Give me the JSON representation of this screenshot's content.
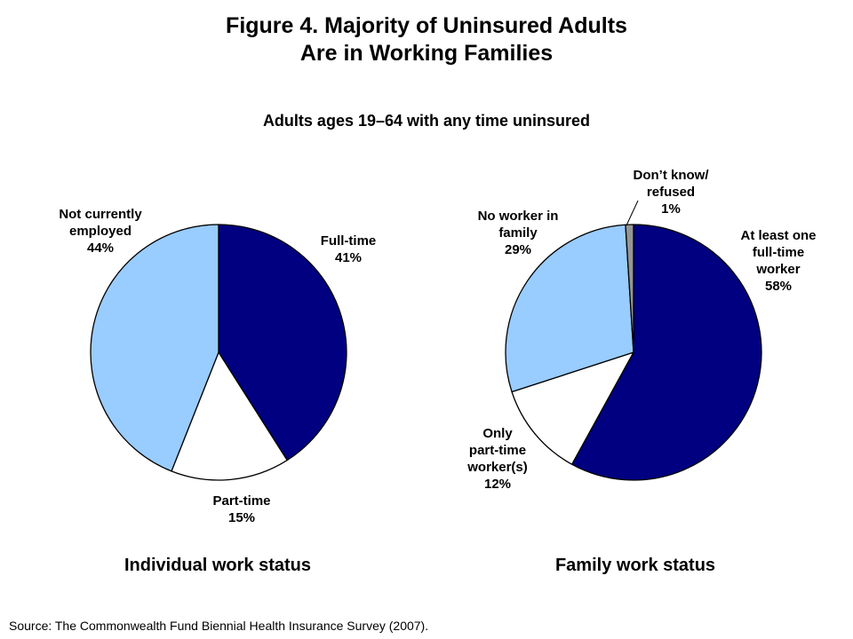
{
  "title_line1": "Figure 4. Majority of Uninsured Adults",
  "title_line2": "Are in Working Families",
  "subtitle": "Adults ages 19–64 with any time uninsured",
  "source": "Source: The Commonwealth Fund Biennial Health Insurance Survey (2007).",
  "chart_data": [
    {
      "type": "pie",
      "title": "Individual work status",
      "start": "12 o'clock, clockwise",
      "slices": [
        {
          "label_lines": [
            "Full-time"
          ],
          "value": 41,
          "value_label": "41%",
          "color": "#000080"
        },
        {
          "label_lines": [
            "Part-time"
          ],
          "value": 15,
          "value_label": "15%",
          "color": "#ffffff"
        },
        {
          "label_lines": [
            "Not currently",
            "employed"
          ],
          "value": 44,
          "value_label": "44%",
          "color": "#99ccff"
        }
      ]
    },
    {
      "type": "pie",
      "title": "Family work status",
      "start": "12 o'clock, clockwise",
      "slices": [
        {
          "label_lines": [
            "At least one",
            "full-time",
            "worker"
          ],
          "value": 58,
          "value_label": "58%",
          "color": "#000080"
        },
        {
          "label_lines": [
            "Only",
            "part-time",
            "worker(s)"
          ],
          "value": 12,
          "value_label": "12%",
          "color": "#ffffff"
        },
        {
          "label_lines": [
            "No worker in",
            "family"
          ],
          "value": 29,
          "value_label": "29%",
          "color": "#99ccff"
        },
        {
          "label_lines": [
            "Don’t know/",
            "refused"
          ],
          "value": 1,
          "value_label": "1%",
          "color": "#969696"
        }
      ]
    }
  ]
}
